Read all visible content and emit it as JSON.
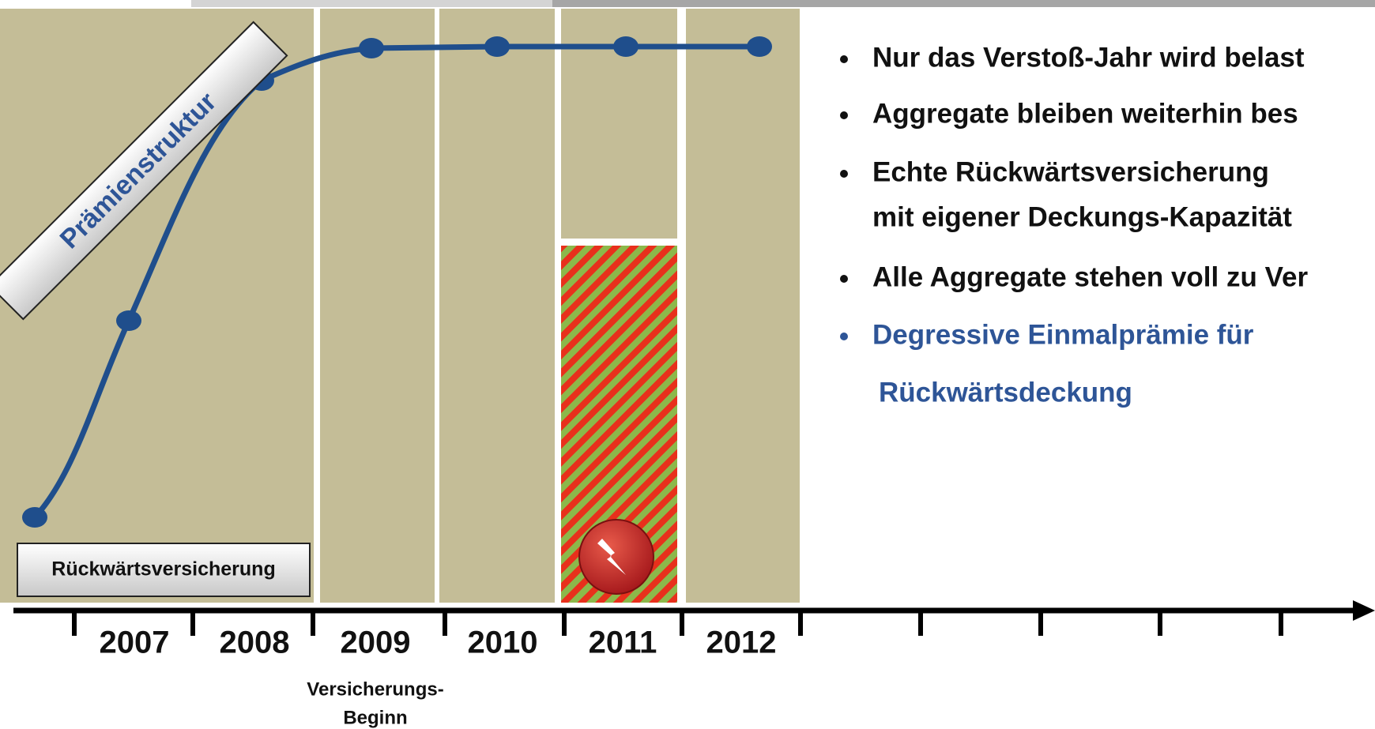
{
  "curve_label": "Prämienstruktur",
  "box_label": "Rückwärtsversicherung",
  "years": [
    "2007",
    "2008",
    "2009",
    "2010",
    "2011",
    "2012"
  ],
  "start_note": [
    "Versicherungs-",
    "Beginn"
  ],
  "bullets": [
    [
      "Nur das Verstoß-Jahr wird belast"
    ],
    [
      "Aggregate bleiben weiterhin bes"
    ],
    [
      "Echte Rückwärtsversicherung",
      "mit eigener Deckungs-Kapazität"
    ],
    [
      "Alle Aggregate stehen voll zu Ver"
    ],
    [
      "Degressive Einmalprämie für",
      "Rückwärtsdeckung"
    ]
  ]
}
